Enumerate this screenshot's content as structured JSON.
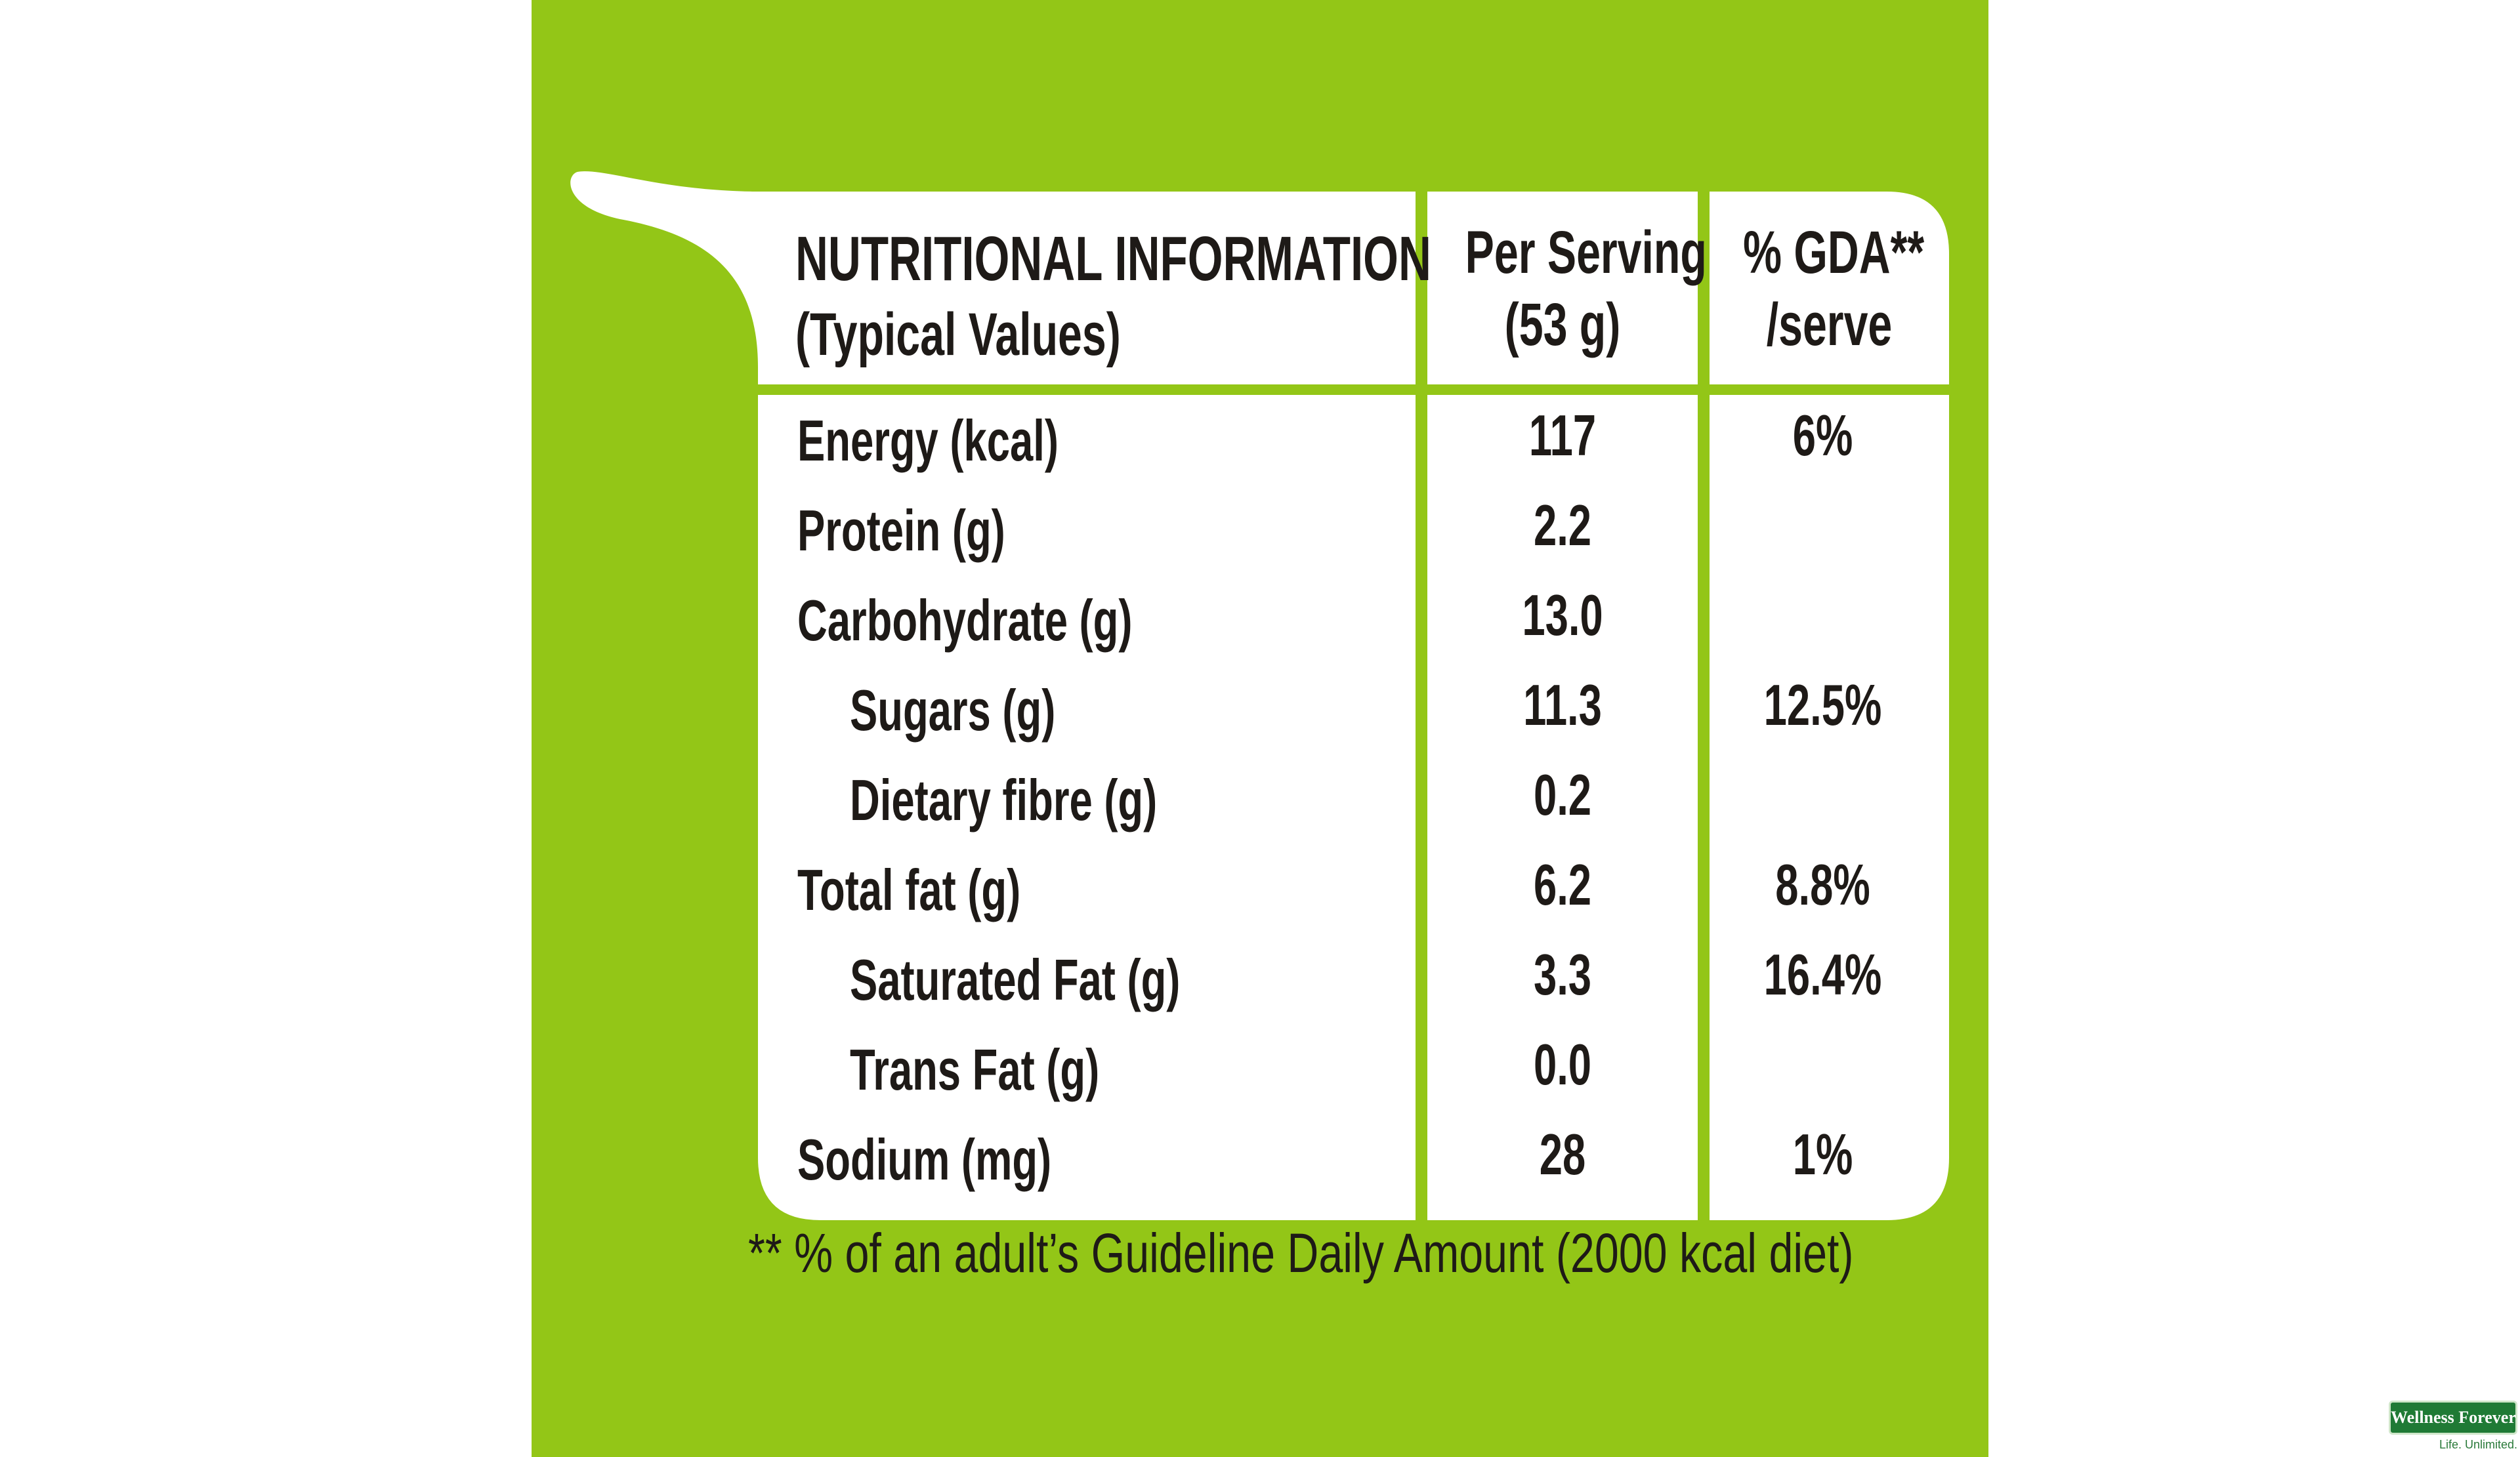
{
  "colors": {
    "background": "#93c617",
    "card": "#ffffff",
    "text": "#1e1a17",
    "logo_green": "#1f7a35"
  },
  "header": {
    "title_line1": "NUTRITIONAL INFORMATION",
    "title_line2": "(Typical Values)",
    "col1_line1": "Per Serving",
    "col1_line2": "(53 g)",
    "col2_line1": "% GDA**",
    "col2_line2": "/serve"
  },
  "rows": [
    {
      "label": "Energy (kcal)",
      "per_serving": "117",
      "gda": "6%",
      "indented": false
    },
    {
      "label": "Protein (g)",
      "per_serving": "2.2",
      "gda": "",
      "indented": false
    },
    {
      "label": "Carbohydrate (g)",
      "per_serving": "13.0",
      "gda": "",
      "indented": false
    },
    {
      "label": "Sugars (g)",
      "per_serving": "11.3",
      "gda": "12.5%",
      "indented": true
    },
    {
      "label": "Dietary fibre (g)",
      "per_serving": "0.2",
      "gda": "",
      "indented": true
    },
    {
      "label": "Total fat (g)",
      "per_serving": "6.2",
      "gda": "8.8%",
      "indented": false
    },
    {
      "label": "Saturated Fat (g)",
      "per_serving": "3.3",
      "gda": "16.4%",
      "indented": true
    },
    {
      "label": "Trans Fat (g)",
      "per_serving": "0.0",
      "gda": "",
      "indented": true
    },
    {
      "label": "Sodium (mg)",
      "per_serving": "28",
      "gda": "1%",
      "indented": false
    }
  ],
  "footnote": "** % of an adult’s Guideline Daily Amount (2000 kcal diet)",
  "watermark": {
    "brand": "Wellness Forever",
    "tagline": "Life. Unlimited."
  }
}
